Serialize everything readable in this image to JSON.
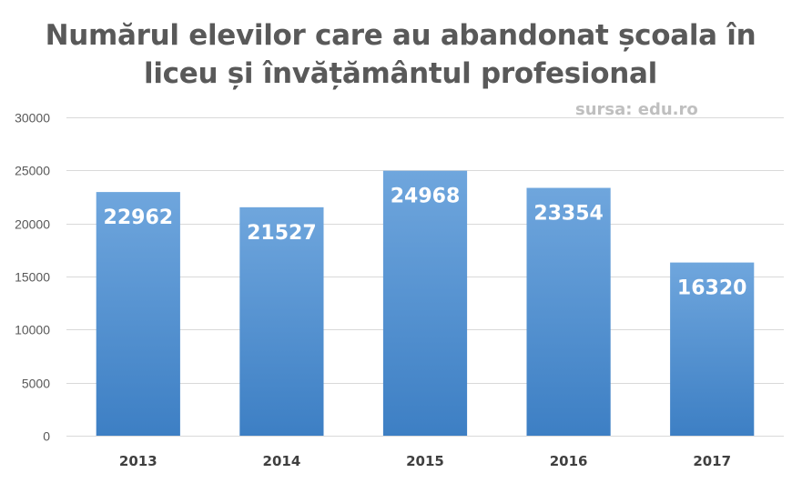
{
  "chart_data": {
    "type": "bar",
    "title": "Numărul elevilor care au abandonat școala în liceu și învățământul profesional",
    "title_lines": [
      "Numărul elevilor care au abandonat școala în",
      "liceu și învățământul profesional"
    ],
    "annotation": "sursa: edu.ro",
    "categories": [
      "2013",
      "2014",
      "2015",
      "2016",
      "2017"
    ],
    "values": [
      22962,
      21527,
      24968,
      23354,
      16320
    ],
    "data_labels": [
      "22962",
      "21527",
      "24968",
      "23354",
      "16320"
    ],
    "xlabel": "",
    "ylabel": "",
    "ylim": [
      0,
      30000
    ],
    "yticks": [
      0,
      5000,
      10000,
      15000,
      20000,
      25000,
      30000
    ],
    "ytick_labels": [
      "0",
      "5000",
      "10000",
      "15000",
      "20000",
      "25000",
      "30000"
    ],
    "grid": true,
    "legend": "none",
    "colors": {
      "bar_top": "#6fa6dd",
      "bar_bottom": "#3d7fc4",
      "title": "#595959",
      "annotation": "#bfbfbf",
      "gridline": "#d9d9d9",
      "data_label": "#ffffff"
    }
  }
}
